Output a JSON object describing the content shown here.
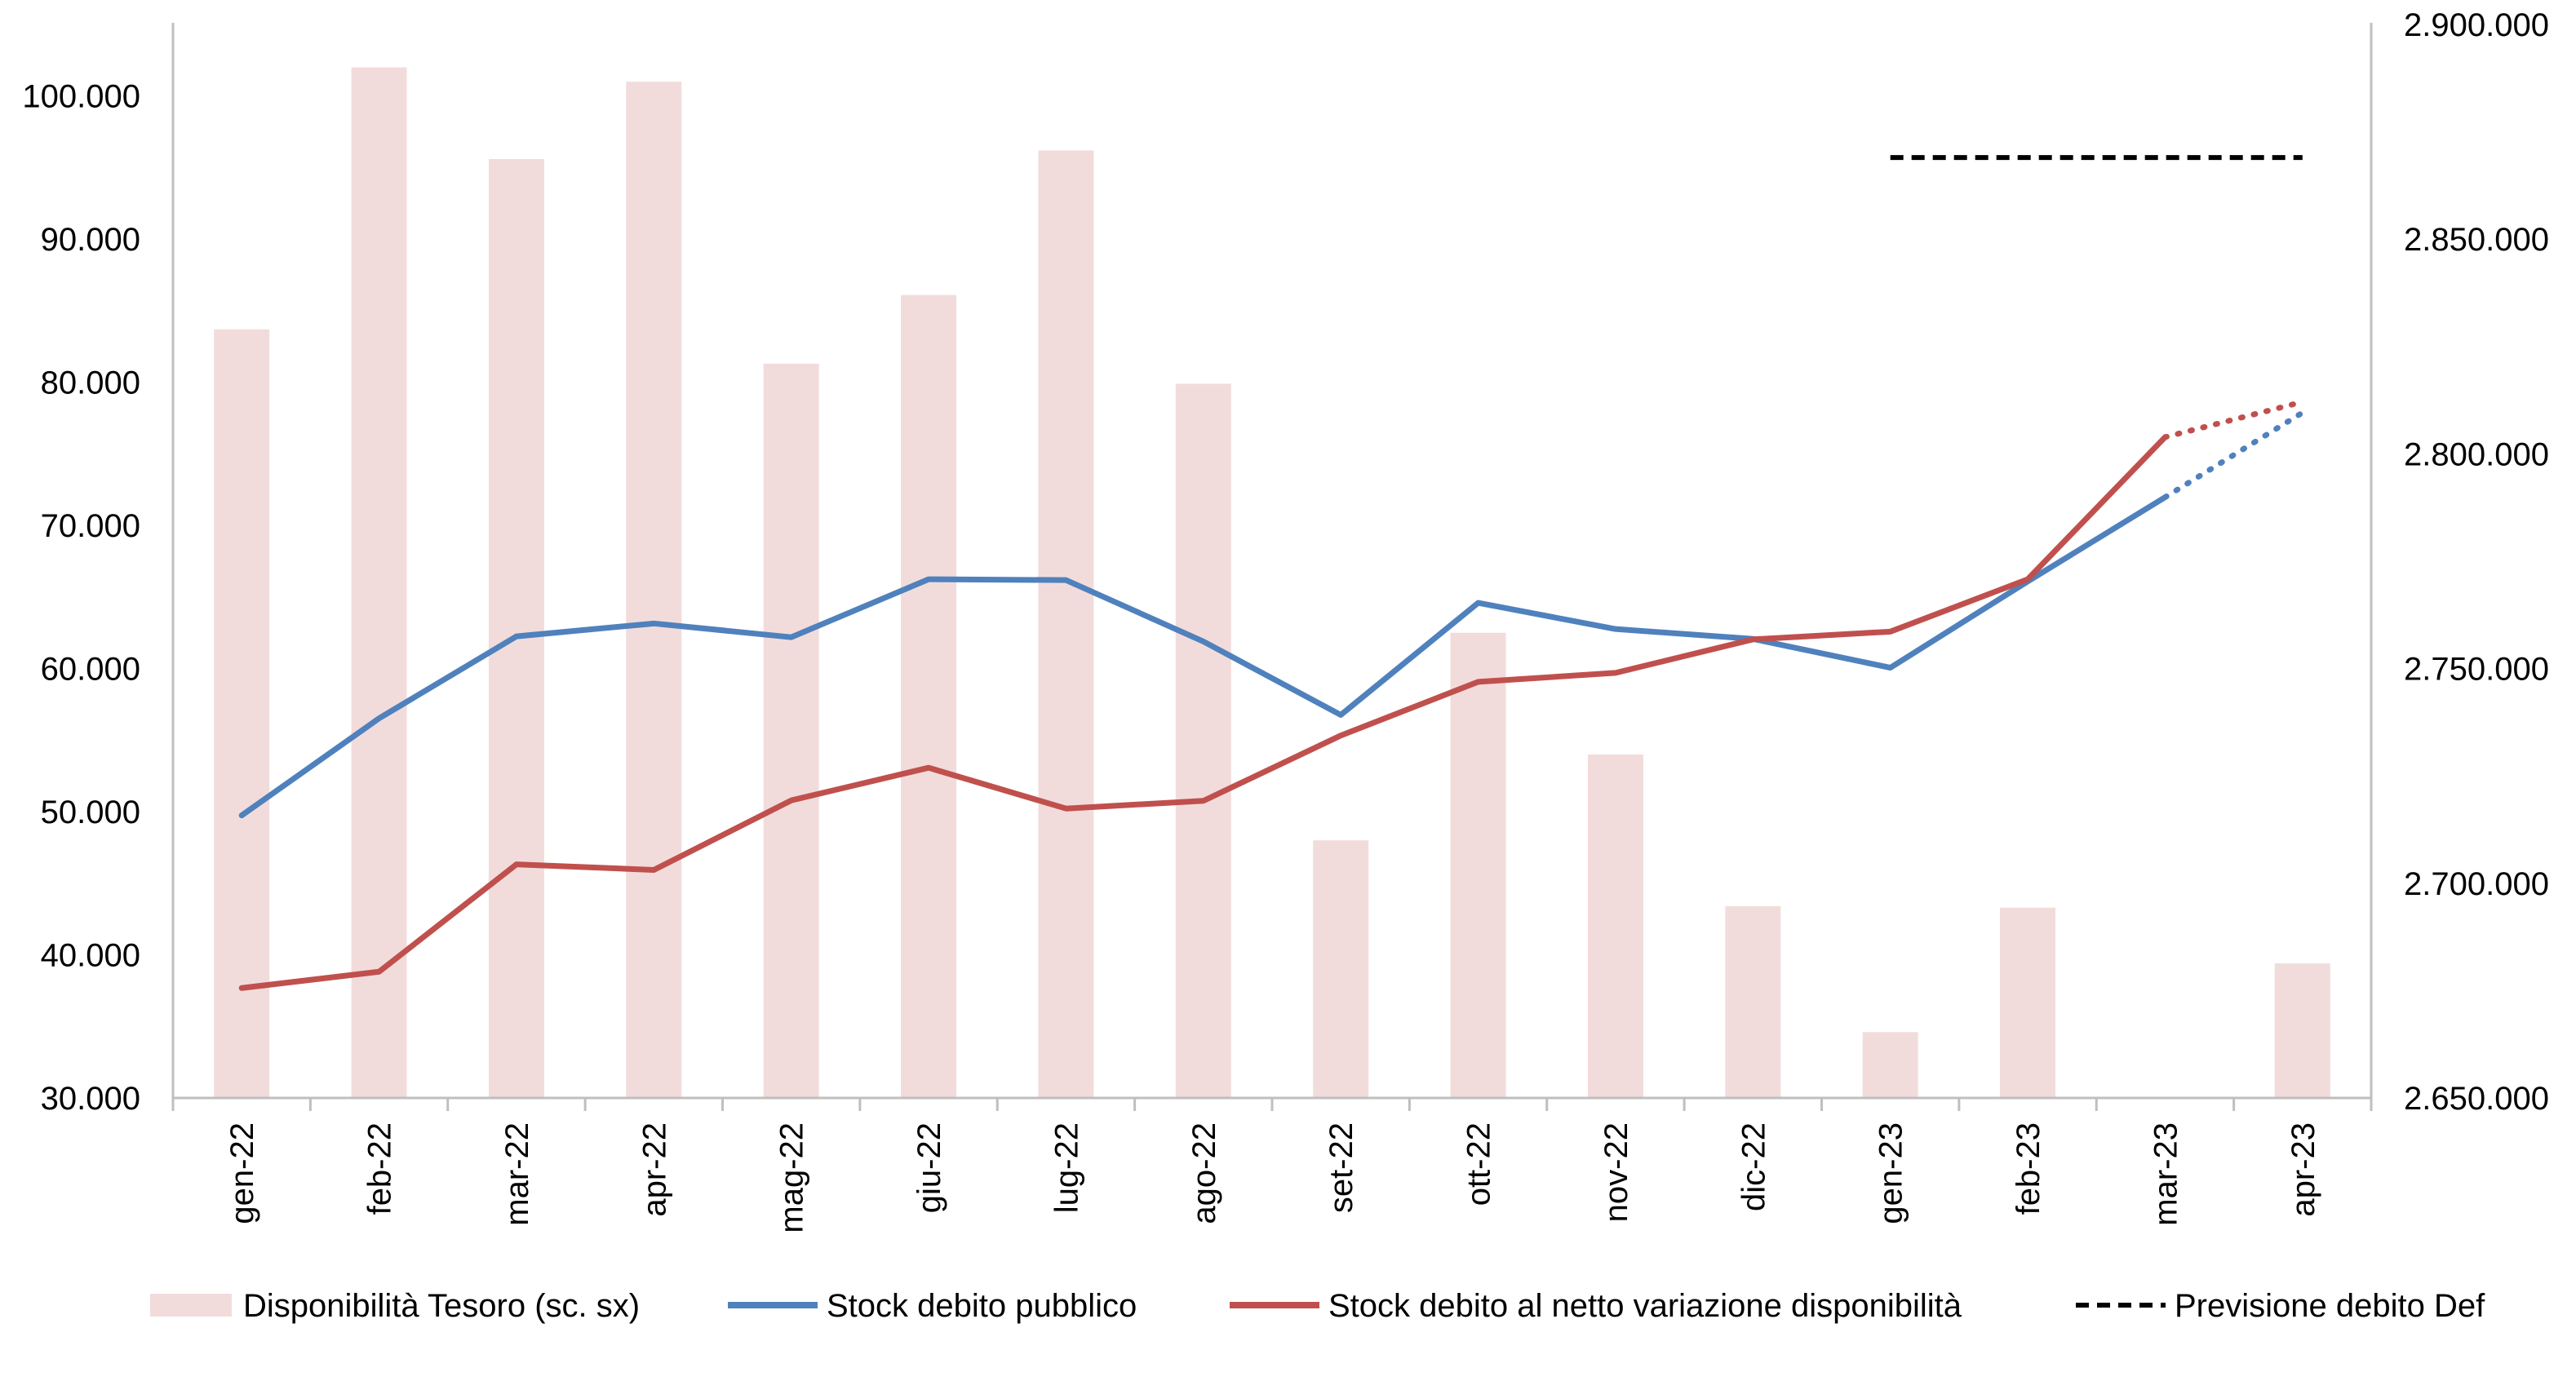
{
  "chart_data": {
    "type": "bar+line",
    "categories": [
      "gen-22",
      "feb-22",
      "mar-22",
      "apr-22",
      "mag-22",
      "giu-22",
      "lug-22",
      "ago-22",
      "set-22",
      "ott-22",
      "nov-22",
      "dic-22",
      "gen-23",
      "feb-23",
      "mar-23",
      "apr-23"
    ],
    "y_left": {
      "ylim": [
        30000,
        105000
      ],
      "ticks": [
        30000,
        40000,
        50000,
        60000,
        70000,
        80000,
        90000,
        100000
      ],
      "tick_labels": [
        "30.000",
        "40.000",
        "50.000",
        "60.000",
        "70.000",
        "80.000",
        "90.000",
        "100.000"
      ]
    },
    "y_right": {
      "ylim": [
        2650000,
        2900000
      ],
      "ticks": [
        2650000,
        2700000,
        2750000,
        2800000,
        2850000,
        2900000
      ],
      "tick_labels": [
        "2.650.000",
        "2.700.000",
        "2.750.000",
        "2.800.000",
        "2.850.000",
        "2.900.000"
      ]
    },
    "series": [
      {
        "name": "Disponibilità Tesoro (sc. sx)",
        "kind": "bar",
        "axis": "left",
        "color": "#f2dcdb",
        "values": [
          83700,
          102000,
          95600,
          101000,
          81300,
          86100,
          96200,
          79900,
          48000,
          62500,
          54000,
          43400,
          34600,
          43300,
          null,
          39400
        ]
      },
      {
        "name": "Stock debito pubblico",
        "kind": "line",
        "axis": "right",
        "color": "#4f81bd",
        "values": [
          2715800,
          2738400,
          2757500,
          2760500,
          2757300,
          2770800,
          2770600,
          2756300,
          2739200,
          2765300,
          2759200,
          2756900,
          2750200,
          2770300,
          2789900,
          2809600
        ],
        "projected_from_index": 14
      },
      {
        "name": "Stock debito al netto variazione disponibilità",
        "kind": "line",
        "axis": "right",
        "color": "#c0504d",
        "values": [
          2675600,
          2679400,
          2704400,
          2703100,
          2719300,
          2726900,
          2717400,
          2719200,
          2734400,
          2746900,
          2749000,
          2756800,
          2758600,
          2770800,
          2803900,
          2812100
        ],
        "projected_from_index": 14
      },
      {
        "name": "Previsione debito Def",
        "kind": "dashed-line",
        "axis": "right",
        "color": "#000000",
        "from_category": "gen-23",
        "to_category": "apr-23",
        "value": 2869000
      }
    ]
  }
}
